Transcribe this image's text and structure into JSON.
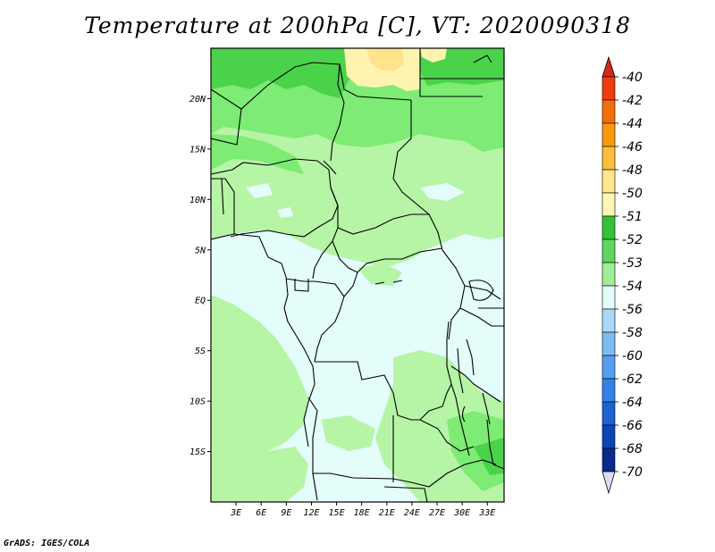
{
  "title": "Temperature at 200hPa [C], VT: 2020090318",
  "credit": "GrADS: IGES/COLA",
  "map": {
    "lat_range": [
      -20,
      25
    ],
    "lon_range": [
      0,
      35
    ],
    "lat_labels": [
      "20N",
      "15N",
      "10N",
      "5N",
      "EQ",
      "5S",
      "10S",
      "15S"
    ],
    "lat_values": [
      20,
      15,
      10,
      5,
      0,
      -5,
      -10,
      -15
    ],
    "lon_labels": [
      "3E",
      "6E",
      "9E",
      "12E",
      "15E",
      "18E",
      "21E",
      "24E",
      "27E",
      "30E",
      "33E"
    ],
    "lon_values": [
      3,
      6,
      9,
      12,
      15,
      18,
      21,
      24,
      27,
      30,
      33
    ]
  },
  "colorbar": {
    "levels": [
      "-40",
      "-42",
      "-44",
      "-46",
      "-48",
      "-50",
      "-51",
      "-52",
      "-53",
      "-54",
      "-56",
      "-58",
      "-60",
      "-62",
      "-64",
      "-66",
      "-68",
      "-70"
    ],
    "colors": [
      "#e31a1c",
      "#f03b0f",
      "#f46d08",
      "#f99a0d",
      "#fbbf3a",
      "#ffe68a",
      "#fff7b4",
      "#35c23a",
      "#5fd75f",
      "#9fee96",
      "#e3fdfb",
      "#a9d8f8",
      "#7cbcf3",
      "#559ef0",
      "#3381e6",
      "#1c62d4",
      "#0c45b4",
      "#0a2a8c",
      "#071a5e"
    ],
    "top_color": "#d7281c",
    "bottom_color": "#dcdcf4"
  },
  "colors": {
    "very_light_cyan": "#e3fdfb",
    "light_green": "#b6f4a6",
    "mid_green": "#7deb74",
    "dark_green": "#4bd24b",
    "pale_yellow": "#fff3b0",
    "yellow": "#fde38a"
  }
}
